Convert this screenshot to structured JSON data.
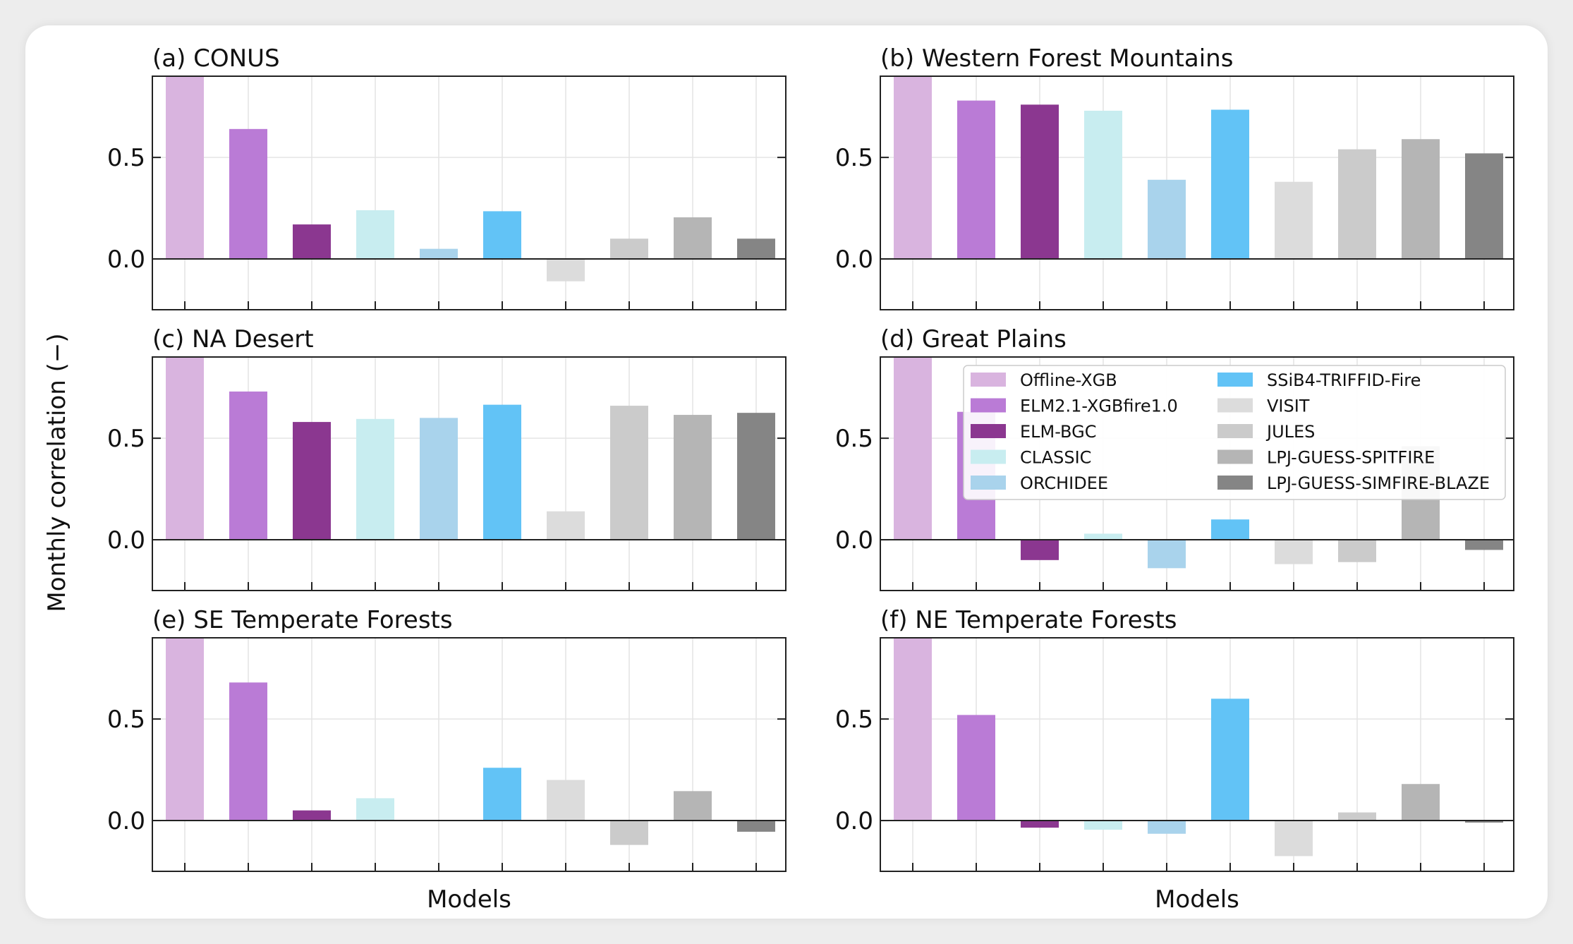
{
  "figure": {
    "ylabel": "Monthly correlation (−)",
    "xlabel": "Models",
    "yticks": [
      "0.0",
      "0.5"
    ]
  },
  "colors": {
    "Offline-XGB": "#d9b4df",
    "ELM2.1-XGBfire1.0": "#ba7bd6",
    "ELM-BGC": "#8b3790",
    "CLASSIC": "#c8edf0",
    "ORCHIDEE": "#a9d3ec",
    "SSiB4-TRIFFID-Fire": "#62c3f6",
    "VISIT": "#dcdcdc",
    "JULES": "#cbcbcb",
    "LPJ-GUESS-SPITFIRE": "#b5b5b5",
    "LPJ-GUESS-SIMFIRE-BLAZE": "#858585"
  },
  "legend": {
    "placement": "inside panel (d), upper right",
    "entries": [
      "Offline-XGB",
      "ELM2.1-XGBfire1.0",
      "ELM-BGC",
      "CLASSIC",
      "ORCHIDEE",
      "SSiB4-TRIFFID-Fire",
      "VISIT",
      "JULES",
      "LPJ-GUESS-SPITFIRE",
      "LPJ-GUESS-SIMFIRE-BLAZE"
    ]
  },
  "chart_data": [
    {
      "type": "bar",
      "title": "(a) CONUS",
      "xlabel": "",
      "ylabel": "Monthly correlation (−)",
      "ylim": [
        -0.25,
        0.9
      ],
      "grid": true,
      "categories": [
        "Offline-XGB",
        "ELM2.1-XGBfire1.0",
        "ELM-BGC",
        "CLASSIC",
        "ORCHIDEE",
        "SSiB4-TRIFFID-Fire",
        "VISIT",
        "JULES",
        "LPJ-GUESS-SPITFIRE",
        "LPJ-GUESS-SIMFIRE-BLAZE"
      ],
      "values": [
        0.92,
        0.64,
        0.17,
        0.24,
        0.05,
        0.235,
        -0.11,
        0.1,
        0.205,
        0.1
      ]
    },
    {
      "type": "bar",
      "title": "(b) Western Forest Mountains",
      "xlabel": "",
      "ylabel": "",
      "ylim": [
        -0.25,
        0.9
      ],
      "grid": true,
      "categories": [
        "Offline-XGB",
        "ELM2.1-XGBfire1.0",
        "ELM-BGC",
        "CLASSIC",
        "ORCHIDEE",
        "SSiB4-TRIFFID-Fire",
        "VISIT",
        "JULES",
        "LPJ-GUESS-SPITFIRE",
        "LPJ-GUESS-SIMFIRE-BLAZE"
      ],
      "values": [
        0.92,
        0.78,
        0.76,
        0.73,
        0.39,
        0.735,
        0.38,
        0.54,
        0.59,
        0.52
      ]
    },
    {
      "type": "bar",
      "title": "(c) NA Desert",
      "xlabel": "",
      "ylabel": "Monthly correlation (−)",
      "ylim": [
        -0.25,
        0.9
      ],
      "grid": true,
      "categories": [
        "Offline-XGB",
        "ELM2.1-XGBfire1.0",
        "ELM-BGC",
        "CLASSIC",
        "ORCHIDEE",
        "SSiB4-TRIFFID-Fire",
        "VISIT",
        "JULES",
        "LPJ-GUESS-SPITFIRE",
        "LPJ-GUESS-SIMFIRE-BLAZE"
      ],
      "values": [
        0.92,
        0.73,
        0.58,
        0.595,
        0.6,
        0.665,
        0.14,
        0.66,
        0.615,
        0.625
      ]
    },
    {
      "type": "bar",
      "title": "(d) Great Plains",
      "xlabel": "",
      "ylabel": "",
      "ylim": [
        -0.25,
        0.9
      ],
      "grid": true,
      "categories": [
        "Offline-XGB",
        "ELM2.1-XGBfire1.0",
        "ELM-BGC",
        "CLASSIC",
        "ORCHIDEE",
        "SSiB4-TRIFFID-Fire",
        "VISIT",
        "JULES",
        "LPJ-GUESS-SPITFIRE",
        "LPJ-GUESS-SIMFIRE-BLAZE"
      ],
      "values": [
        0.92,
        0.63,
        -0.1,
        0.03,
        -0.14,
        0.1,
        -0.12,
        -0.11,
        0.46,
        -0.05
      ]
    },
    {
      "type": "bar",
      "title": "(e) SE Temperate Forests",
      "xlabel": "Models",
      "ylabel": "Monthly correlation (−)",
      "ylim": [
        -0.25,
        0.9
      ],
      "grid": true,
      "categories": [
        "Offline-XGB",
        "ELM2.1-XGBfire1.0",
        "ELM-BGC",
        "CLASSIC",
        "ORCHIDEE",
        "SSiB4-TRIFFID-Fire",
        "VISIT",
        "JULES",
        "LPJ-GUESS-SPITFIRE",
        "LPJ-GUESS-SIMFIRE-BLAZE"
      ],
      "values": [
        0.92,
        0.68,
        0.05,
        0.11,
        0.0,
        0.26,
        0.2,
        -0.12,
        0.145,
        -0.055
      ]
    },
    {
      "type": "bar",
      "title": "(f) NE Temperate Forests",
      "xlabel": "Models",
      "ylabel": "",
      "ylim": [
        -0.25,
        0.9
      ],
      "grid": true,
      "categories": [
        "Offline-XGB",
        "ELM2.1-XGBfire1.0",
        "ELM-BGC",
        "CLASSIC",
        "ORCHIDEE",
        "SSiB4-TRIFFID-Fire",
        "VISIT",
        "JULES",
        "LPJ-GUESS-SPITFIRE",
        "LPJ-GUESS-SIMFIRE-BLAZE"
      ],
      "values": [
        0.92,
        0.52,
        -0.035,
        -0.045,
        -0.065,
        0.6,
        -0.175,
        0.04,
        0.18,
        -0.01
      ]
    }
  ]
}
